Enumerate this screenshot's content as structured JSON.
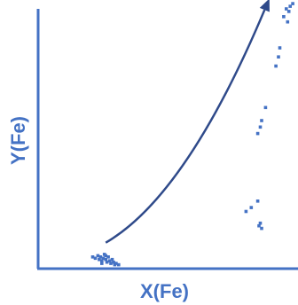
{
  "chart_data": {
    "type": "scatter",
    "xlabel": "X(Fe)",
    "ylabel": "Y(Fe)",
    "xlim": [
      0,
      1
    ],
    "ylim": [
      0,
      1
    ],
    "grid": false,
    "colors": {
      "axis": "#4472c4",
      "points": "#4472c4",
      "arrow": "#2f4a8a",
      "label": "#4472c4"
    },
    "annotations": [
      {
        "type": "arrow",
        "from": [
          0.26,
          0.1
        ],
        "to": [
          0.89,
          1.04
        ],
        "via": [
          0.57,
          0.28
        ]
      }
    ],
    "series": [
      {
        "points": [
          [
            0.21,
            0.045
          ],
          [
            0.22,
            0.04
          ],
          [
            0.23,
            0.05
          ],
          [
            0.235,
            0.035
          ],
          [
            0.24,
            0.045
          ],
          [
            0.245,
            0.03
          ],
          [
            0.25,
            0.04
          ],
          [
            0.255,
            0.055
          ],
          [
            0.26,
            0.035
          ],
          [
            0.265,
            0.025
          ],
          [
            0.27,
            0.045
          ],
          [
            0.275,
            0.03
          ],
          [
            0.28,
            0.02
          ],
          [
            0.285,
            0.035
          ],
          [
            0.29,
            0.025
          ],
          [
            0.295,
            0.015
          ],
          [
            0.3,
            0.02
          ],
          [
            0.31,
            0.015
          ],
          [
            0.245,
            0.02
          ],
          [
            0.26,
            0.05
          ],
          [
            0.8,
            0.22
          ],
          [
            0.82,
            0.235
          ],
          [
            0.845,
            0.26
          ],
          [
            0.85,
            0.165
          ],
          [
            0.86,
            0.155
          ],
          [
            0.855,
            0.175
          ],
          [
            0.845,
            0.52
          ],
          [
            0.855,
            0.545
          ],
          [
            0.86,
            0.57
          ],
          [
            0.875,
            0.62
          ],
          [
            0.915,
            0.78
          ],
          [
            0.925,
            0.815
          ],
          [
            0.93,
            0.85
          ],
          [
            0.945,
            0.97
          ],
          [
            0.955,
            1.0
          ],
          [
            0.965,
            0.99
          ],
          [
            0.97,
            1.01
          ],
          [
            0.96,
            0.95
          ],
          [
            0.98,
            1.02
          ]
        ]
      }
    ]
  }
}
